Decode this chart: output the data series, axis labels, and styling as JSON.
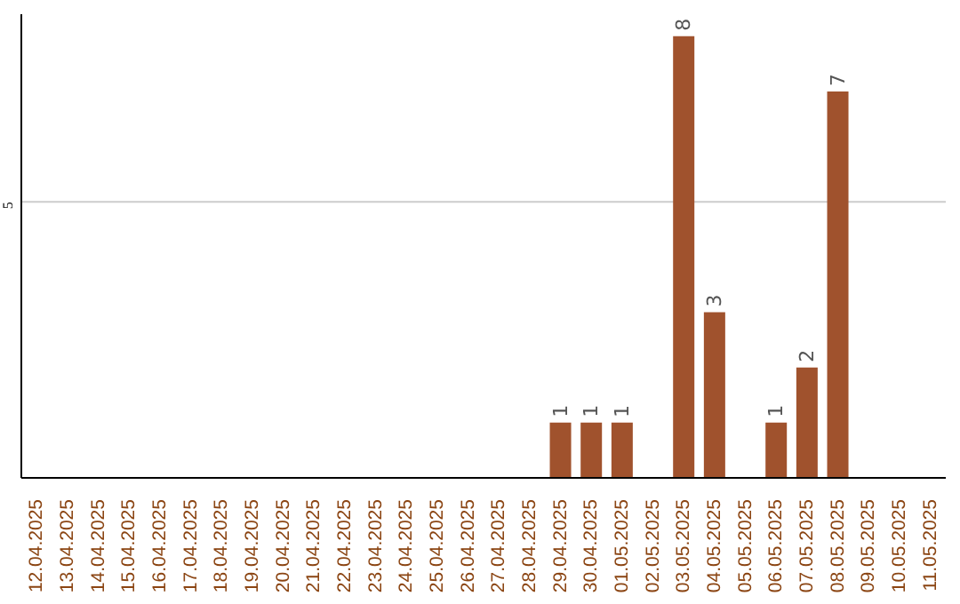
{
  "chart_data": {
    "type": "bar",
    "categories": [
      "12.04.2025",
      "13.04.2025",
      "14.04.2025",
      "15.04.2025",
      "16.04.2025",
      "17.04.2025",
      "18.04.2025",
      "19.04.2025",
      "20.04.2025",
      "21.04.2025",
      "22.04.2025",
      "23.04.2025",
      "24.04.2025",
      "25.04.2025",
      "26.04.2025",
      "27.04.2025",
      "28.04.2025",
      "29.04.2025",
      "30.04.2025",
      "01.05.2025",
      "02.05.2025",
      "03.05.2025",
      "04.05.2025",
      "05.05.2025",
      "06.05.2025",
      "07.05.2025",
      "08.05.2025",
      "09.05.2025",
      "10.05.2025",
      "11.05.2025"
    ],
    "values": [
      null,
      null,
      null,
      null,
      null,
      null,
      null,
      null,
      null,
      null,
      null,
      null,
      null,
      null,
      null,
      null,
      null,
      1,
      1,
      1,
      null,
      8,
      3,
      null,
      1,
      2,
      7,
      null,
      null,
      null
    ],
    "color": "#a0522d",
    "ylim": [
      0,
      8.4
    ],
    "yticks": [
      5
    ],
    "grid": "y",
    "data_labels": true
  }
}
